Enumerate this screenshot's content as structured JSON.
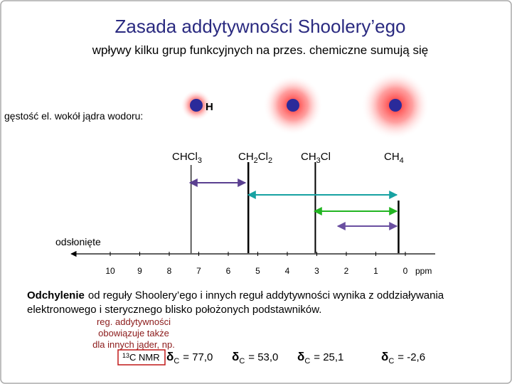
{
  "header": {
    "title": "Zasada addytywności Shoolery’ego",
    "subtitle": "wpływy kilku grup funkcyjnych na przes. chemiczne sumują się"
  },
  "density_label": "gęstość el. wokół jądra wodoru:",
  "atom_label": "H",
  "compounds": [
    {
      "parts": [
        {
          "t": "CHCl"
        },
        {
          "t": "3",
          "sub": true
        }
      ],
      "ppm": 7.26
    },
    {
      "parts": [
        {
          "t": "CH"
        },
        {
          "t": "2",
          "sub": true
        },
        {
          "t": "Cl"
        },
        {
          "t": "2",
          "sub": true
        }
      ],
      "ppm": 5.32
    },
    {
      "parts": [
        {
          "t": "CH"
        },
        {
          "t": "3",
          "sub": true
        },
        {
          "t": "Cl"
        }
      ],
      "ppm": 3.05
    },
    {
      "parts": [
        {
          "t": "CH"
        },
        {
          "t": "4",
          "sub": true
        }
      ],
      "ppm": 0.23
    }
  ],
  "deshielded_label": "odsłonięte",
  "axis": {
    "ticks": [
      10,
      9,
      8,
      7,
      6,
      5,
      4,
      3,
      2,
      1,
      0
    ],
    "unit": "ppm"
  },
  "paragraph": {
    "bold": "Odchylenie",
    "lines": [
      "od reguły Shoolery’ego i innych reguł addytywności wynika z oddziaływania",
      "elektronowego i sterycznego blisko położonych podstawników."
    ]
  },
  "note": [
    "reg. addytywności",
    "obowiązuje także",
    "dla innych jąder, np."
  ],
  "nmr_label": {
    "sup": "13",
    "text": "C NMR"
  },
  "shifts": [
    {
      "symbol": "δ",
      "sub": "C",
      "text": "= 77,0"
    },
    {
      "symbol": "δ",
      "sub": "C",
      "text": "= 53,0"
    },
    {
      "symbol": "δ",
      "sub": "C",
      "text": "= 25,1"
    },
    {
      "symbol": "δ",
      "sub": "C",
      "text": "= -2,6"
    }
  ]
}
